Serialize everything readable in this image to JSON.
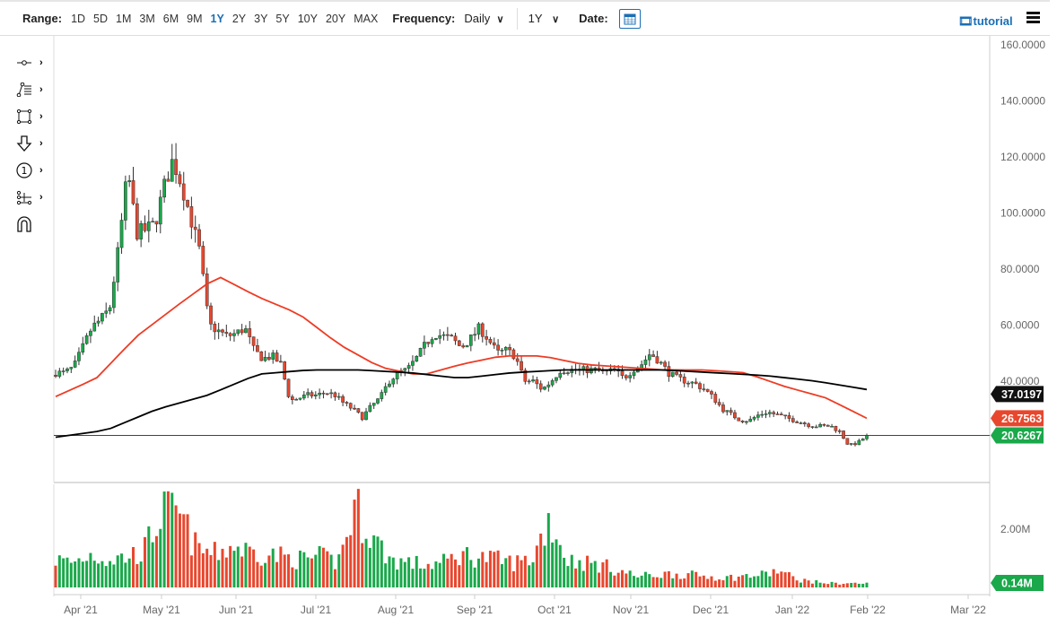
{
  "toolbar": {
    "range_label": "Range:",
    "ranges": [
      "1D",
      "5D",
      "1M",
      "3M",
      "6M",
      "9M",
      "1Y",
      "2Y",
      "3Y",
      "5Y",
      "10Y",
      "20Y",
      "MAX"
    ],
    "active_range": "1Y",
    "frequency_label": "Frequency:",
    "frequency": "Daily",
    "period": "1Y",
    "date_label": "Date:",
    "tutorial": "tutorial"
  },
  "tools": [
    "line-tool-icon",
    "fib-tool-icon",
    "rectangle-tool-icon",
    "arrow-down-icon",
    "numbered-marker-icon",
    "measure-tool-icon",
    "magnet-icon"
  ],
  "colors": {
    "up": "#1aa84b",
    "down": "#e8472e",
    "ma50": "#ee3b24",
    "ma200": "#000000",
    "accent": "#1a6fb5"
  },
  "chart_data": {
    "type": "candlestick",
    "price_axis": {
      "ticks": [
        "160.0000",
        "140.0000",
        "120.0000",
        "100.0000",
        "80.0000",
        "60.0000",
        "40.0000"
      ],
      "values": [
        160,
        140,
        120,
        100,
        80,
        60,
        40
      ]
    },
    "volume_axis": {
      "ticks": [
        "2.00M"
      ],
      "values": [
        2
      ]
    },
    "x_ticks": [
      "Apr '21",
      "May '21",
      "Jun '21",
      "Jul '21",
      "Aug '21",
      "Sep '21",
      "Oct '21",
      "Nov '21",
      "Dec '21",
      "Jan '22",
      "Feb '22",
      "Mar '22"
    ],
    "closes": [
      43,
      43,
      45,
      52,
      59,
      62,
      66,
      88,
      115,
      93,
      94,
      96,
      109,
      119,
      110,
      98,
      86,
      60,
      58,
      56,
      57,
      59,
      51,
      48,
      49,
      46,
      33,
      34,
      35,
      35,
      36,
      35,
      32,
      30,
      27,
      31,
      34,
      40,
      43,
      44,
      48,
      53,
      57,
      56,
      55,
      52,
      55,
      59,
      55,
      50,
      51,
      49,
      40,
      40,
      37,
      40,
      44,
      44,
      44,
      44,
      44,
      43,
      44,
      41,
      44,
      46,
      50,
      47,
      43,
      41,
      40,
      39,
      37,
      34,
      30,
      28,
      26,
      26,
      28,
      29,
      28,
      27,
      26,
      25,
      24,
      24,
      24,
      22,
      17,
      18,
      20.6
    ],
    "volumes_M": [
      1.0,
      0.9,
      1.2,
      1.0,
      1.1,
      1.3,
      2.7,
      2.6,
      1.4,
      1.2,
      1.5,
      1.3,
      1.2,
      1.1,
      1.0,
      1.1,
      0.9,
      2.9,
      1.8,
      1.0,
      0.9,
      0.8,
      0.9,
      1.2,
      1.1,
      1.0,
      0.9,
      1.0,
      2.5,
      1.0,
      0.9,
      0.8,
      0.6,
      0.4,
      0.45,
      0.5,
      0.45,
      0.4,
      0.35,
      0.4,
      0.45,
      0.6,
      0.3,
      0.2,
      0.15,
      0.15,
      0.14
    ],
    "ma50": [
      34.5,
      41,
      56,
      67,
      77.5,
      70,
      64,
      53,
      45,
      42,
      46,
      49,
      49,
      46,
      45,
      44,
      44,
      43,
      38,
      34,
      26.76
    ],
    "ma200": [
      20,
      22.5,
      30,
      35,
      42.5,
      44,
      44,
      43,
      41,
      43,
      44,
      44,
      44,
      43,
      42,
      40,
      37.02
    ],
    "last": {
      "ma200": "37.0197",
      "ma50": "26.7563",
      "close": "20.6267",
      "volume": "0.14M"
    }
  }
}
